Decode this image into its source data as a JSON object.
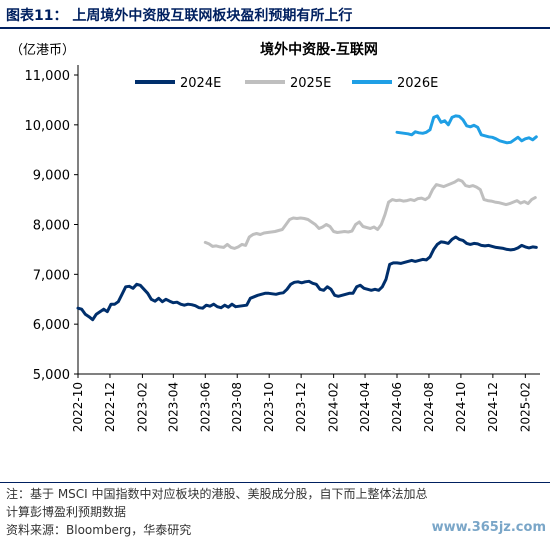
{
  "header": {
    "title": "图表11：  上周境外中资股互联网板块盈利预期有所上行"
  },
  "chart_data": {
    "type": "line",
    "title": "境外中资股-互联网",
    "unit_label": "（亿港币）",
    "ylim": [
      5000,
      11000
    ],
    "yticks": [
      5000,
      6000,
      7000,
      8000,
      9000,
      10000,
      11000
    ],
    "ytick_labels": [
      "5,000",
      "6,000",
      "7,000",
      "8,000",
      "9,000",
      "10,000",
      "11,000"
    ],
    "x_ticks": [
      "2022-10",
      "2022-12",
      "2023-02",
      "2023-04",
      "2023-06",
      "2023-08",
      "2023-10",
      "2023-12",
      "2024-02",
      "2024-04",
      "2024-06",
      "2024-08",
      "2024-10",
      "2024-12",
      "2025-02"
    ],
    "grid": false,
    "legend_position": "top",
    "series": [
      {
        "name": "2024E",
        "color": "#002F6C",
        "points": [
          [
            "2022-10-01",
            6320
          ],
          [
            "2022-10-08",
            6300
          ],
          [
            "2022-10-15",
            6200
          ],
          [
            "2022-10-22",
            6150
          ],
          [
            "2022-10-29",
            6090
          ],
          [
            "2022-11-05",
            6200
          ],
          [
            "2022-11-12",
            6250
          ],
          [
            "2022-11-19",
            6300
          ],
          [
            "2022-11-26",
            6250
          ],
          [
            "2022-12-03",
            6400
          ],
          [
            "2022-12-10",
            6400
          ],
          [
            "2022-12-17",
            6450
          ],
          [
            "2022-12-24",
            6600
          ],
          [
            "2022-12-31",
            6750
          ],
          [
            "2023-01-07",
            6760
          ],
          [
            "2023-01-14",
            6720
          ],
          [
            "2023-01-21",
            6800
          ],
          [
            "2023-01-28",
            6780
          ],
          [
            "2023-02-04",
            6700
          ],
          [
            "2023-02-11",
            6620
          ],
          [
            "2023-02-18",
            6500
          ],
          [
            "2023-02-25",
            6460
          ],
          [
            "2023-03-04",
            6520
          ],
          [
            "2023-03-11",
            6450
          ],
          [
            "2023-03-18",
            6500
          ],
          [
            "2023-03-25",
            6460
          ],
          [
            "2023-04-01",
            6430
          ],
          [
            "2023-04-08",
            6440
          ],
          [
            "2023-04-15",
            6400
          ],
          [
            "2023-04-22",
            6380
          ],
          [
            "2023-04-29",
            6400
          ],
          [
            "2023-05-06",
            6390
          ],
          [
            "2023-05-13",
            6370
          ],
          [
            "2023-05-20",
            6330
          ],
          [
            "2023-05-27",
            6320
          ],
          [
            "2023-06-03",
            6380
          ],
          [
            "2023-06-10",
            6360
          ],
          [
            "2023-06-17",
            6400
          ],
          [
            "2023-06-24",
            6350
          ],
          [
            "2023-07-01",
            6330
          ],
          [
            "2023-07-08",
            6380
          ],
          [
            "2023-07-15",
            6340
          ],
          [
            "2023-07-22",
            6400
          ],
          [
            "2023-07-29",
            6350
          ],
          [
            "2023-08-05",
            6360
          ],
          [
            "2023-08-12",
            6370
          ],
          [
            "2023-08-19",
            6380
          ],
          [
            "2023-08-26",
            6520
          ],
          [
            "2023-09-02",
            6550
          ],
          [
            "2023-09-09",
            6580
          ],
          [
            "2023-09-16",
            6600
          ],
          [
            "2023-09-23",
            6620
          ],
          [
            "2023-09-30",
            6620
          ],
          [
            "2023-10-07",
            6610
          ],
          [
            "2023-10-14",
            6600
          ],
          [
            "2023-10-21",
            6620
          ],
          [
            "2023-10-28",
            6630
          ],
          [
            "2023-11-04",
            6700
          ],
          [
            "2023-11-11",
            6800
          ],
          [
            "2023-11-18",
            6840
          ],
          [
            "2023-11-25",
            6850
          ],
          [
            "2023-12-02",
            6830
          ],
          [
            "2023-12-09",
            6850
          ],
          [
            "2023-12-16",
            6860
          ],
          [
            "2023-12-23",
            6820
          ],
          [
            "2023-12-30",
            6800
          ],
          [
            "2024-01-06",
            6700
          ],
          [
            "2024-01-13",
            6680
          ],
          [
            "2024-01-20",
            6750
          ],
          [
            "2024-01-27",
            6700
          ],
          [
            "2024-02-03",
            6580
          ],
          [
            "2024-02-10",
            6560
          ],
          [
            "2024-02-17",
            6580
          ],
          [
            "2024-02-24",
            6600
          ],
          [
            "2024-03-02",
            6620
          ],
          [
            "2024-03-09",
            6620
          ],
          [
            "2024-03-16",
            6750
          ],
          [
            "2024-03-23",
            6780
          ],
          [
            "2024-03-30",
            6720
          ],
          [
            "2024-04-06",
            6700
          ],
          [
            "2024-04-13",
            6680
          ],
          [
            "2024-04-20",
            6700
          ],
          [
            "2024-04-27",
            6680
          ],
          [
            "2024-05-04",
            6750
          ],
          [
            "2024-05-11",
            6900
          ],
          [
            "2024-05-18",
            7200
          ],
          [
            "2024-05-25",
            7230
          ],
          [
            "2024-06-01",
            7230
          ],
          [
            "2024-06-08",
            7220
          ],
          [
            "2024-06-15",
            7240
          ],
          [
            "2024-06-22",
            7260
          ],
          [
            "2024-06-29",
            7280
          ],
          [
            "2024-07-06",
            7260
          ],
          [
            "2024-07-13",
            7280
          ],
          [
            "2024-07-20",
            7300
          ],
          [
            "2024-07-27",
            7290
          ],
          [
            "2024-08-03",
            7350
          ],
          [
            "2024-08-10",
            7500
          ],
          [
            "2024-08-17",
            7600
          ],
          [
            "2024-08-24",
            7650
          ],
          [
            "2024-08-31",
            7640
          ],
          [
            "2024-09-07",
            7620
          ],
          [
            "2024-09-14",
            7700
          ],
          [
            "2024-09-21",
            7750
          ],
          [
            "2024-09-28",
            7700
          ],
          [
            "2024-10-05",
            7680
          ],
          [
            "2024-10-12",
            7620
          ],
          [
            "2024-10-19",
            7600
          ],
          [
            "2024-10-26",
            7620
          ],
          [
            "2024-11-02",
            7610
          ],
          [
            "2024-11-09",
            7580
          ],
          [
            "2024-11-16",
            7570
          ],
          [
            "2024-11-23",
            7580
          ],
          [
            "2024-11-30",
            7560
          ],
          [
            "2024-12-07",
            7540
          ],
          [
            "2024-12-14",
            7530
          ],
          [
            "2024-12-21",
            7520
          ],
          [
            "2024-12-28",
            7500
          ],
          [
            "2025-01-04",
            7490
          ],
          [
            "2025-01-11",
            7500
          ],
          [
            "2025-01-18",
            7530
          ],
          [
            "2025-01-25",
            7580
          ],
          [
            "2025-02-01",
            7550
          ],
          [
            "2025-02-08",
            7530
          ],
          [
            "2025-02-15",
            7550
          ],
          [
            "2025-02-22",
            7540
          ]
        ]
      },
      {
        "name": "2025E",
        "color": "#BFBFBF",
        "points": [
          [
            "2023-06-01",
            7640
          ],
          [
            "2023-06-08",
            7610
          ],
          [
            "2023-06-15",
            7560
          ],
          [
            "2023-06-22",
            7570
          ],
          [
            "2023-06-29",
            7550
          ],
          [
            "2023-07-06",
            7540
          ],
          [
            "2023-07-13",
            7600
          ],
          [
            "2023-07-20",
            7540
          ],
          [
            "2023-07-27",
            7520
          ],
          [
            "2023-08-03",
            7550
          ],
          [
            "2023-08-10",
            7600
          ],
          [
            "2023-08-17",
            7580
          ],
          [
            "2023-08-24",
            7750
          ],
          [
            "2023-08-31",
            7800
          ],
          [
            "2023-09-07",
            7820
          ],
          [
            "2023-09-14",
            7800
          ],
          [
            "2023-09-21",
            7830
          ],
          [
            "2023-09-28",
            7840
          ],
          [
            "2023-10-05",
            7850
          ],
          [
            "2023-10-12",
            7860
          ],
          [
            "2023-10-19",
            7880
          ],
          [
            "2023-10-26",
            7900
          ],
          [
            "2023-11-02",
            8000
          ],
          [
            "2023-11-09",
            8100
          ],
          [
            "2023-11-16",
            8130
          ],
          [
            "2023-11-23",
            8120
          ],
          [
            "2023-11-30",
            8130
          ],
          [
            "2023-12-07",
            8120
          ],
          [
            "2023-12-14",
            8100
          ],
          [
            "2023-12-21",
            8050
          ],
          [
            "2023-12-28",
            8000
          ],
          [
            "2024-01-04",
            7920
          ],
          [
            "2024-01-11",
            7950
          ],
          [
            "2024-01-18",
            8000
          ],
          [
            "2024-01-25",
            7960
          ],
          [
            "2024-02-01",
            7860
          ],
          [
            "2024-02-08",
            7840
          ],
          [
            "2024-02-15",
            7850
          ],
          [
            "2024-02-22",
            7860
          ],
          [
            "2024-02-29",
            7850
          ],
          [
            "2024-03-07",
            7870
          ],
          [
            "2024-03-14",
            8000
          ],
          [
            "2024-03-21",
            8050
          ],
          [
            "2024-03-28",
            7960
          ],
          [
            "2024-04-04",
            7940
          ],
          [
            "2024-04-11",
            7920
          ],
          [
            "2024-04-18",
            7950
          ],
          [
            "2024-04-25",
            7900
          ],
          [
            "2024-05-02",
            8000
          ],
          [
            "2024-05-09",
            8200
          ],
          [
            "2024-05-16",
            8450
          ],
          [
            "2024-05-23",
            8500
          ],
          [
            "2024-05-30",
            8480
          ],
          [
            "2024-06-06",
            8490
          ],
          [
            "2024-06-13",
            8470
          ],
          [
            "2024-06-20",
            8480
          ],
          [
            "2024-06-27",
            8500
          ],
          [
            "2024-07-04",
            8480
          ],
          [
            "2024-07-11",
            8520
          ],
          [
            "2024-07-18",
            8530
          ],
          [
            "2024-07-25",
            8500
          ],
          [
            "2024-08-01",
            8550
          ],
          [
            "2024-08-08",
            8700
          ],
          [
            "2024-08-15",
            8800
          ],
          [
            "2024-08-22",
            8780
          ],
          [
            "2024-08-29",
            8760
          ],
          [
            "2024-09-05",
            8790
          ],
          [
            "2024-09-12",
            8820
          ],
          [
            "2024-09-19",
            8850
          ],
          [
            "2024-09-26",
            8900
          ],
          [
            "2024-10-03",
            8870
          ],
          [
            "2024-10-10",
            8780
          ],
          [
            "2024-10-17",
            8760
          ],
          [
            "2024-10-24",
            8780
          ],
          [
            "2024-10-31",
            8750
          ],
          [
            "2024-11-07",
            8700
          ],
          [
            "2024-11-14",
            8500
          ],
          [
            "2024-11-21",
            8480
          ],
          [
            "2024-11-28",
            8470
          ],
          [
            "2024-12-05",
            8450
          ],
          [
            "2024-12-12",
            8440
          ],
          [
            "2024-12-19",
            8420
          ],
          [
            "2024-12-26",
            8400
          ],
          [
            "2025-01-02",
            8420
          ],
          [
            "2025-01-09",
            8450
          ],
          [
            "2025-01-16",
            8480
          ],
          [
            "2025-01-23",
            8430
          ],
          [
            "2025-01-30",
            8460
          ],
          [
            "2025-02-06",
            8420
          ],
          [
            "2025-02-13",
            8500
          ],
          [
            "2025-02-20",
            8540
          ]
        ]
      },
      {
        "name": "2026E",
        "color": "#1F9FE5",
        "points": [
          [
            "2024-06-01",
            9850
          ],
          [
            "2024-06-08",
            9840
          ],
          [
            "2024-06-15",
            9830
          ],
          [
            "2024-06-22",
            9820
          ],
          [
            "2024-06-29",
            9800
          ],
          [
            "2024-07-06",
            9860
          ],
          [
            "2024-07-13",
            9840
          ],
          [
            "2024-07-20",
            9830
          ],
          [
            "2024-07-27",
            9850
          ],
          [
            "2024-08-03",
            9900
          ],
          [
            "2024-08-10",
            10150
          ],
          [
            "2024-08-17",
            10180
          ],
          [
            "2024-08-24",
            10050
          ],
          [
            "2024-08-31",
            10080
          ],
          [
            "2024-09-07",
            10000
          ],
          [
            "2024-09-14",
            10150
          ],
          [
            "2024-09-21",
            10180
          ],
          [
            "2024-09-28",
            10170
          ],
          [
            "2024-10-05",
            10100
          ],
          [
            "2024-10-12",
            9980
          ],
          [
            "2024-10-19",
            9960
          ],
          [
            "2024-10-26",
            9990
          ],
          [
            "2024-11-02",
            9950
          ],
          [
            "2024-11-09",
            9800
          ],
          [
            "2024-11-16",
            9780
          ],
          [
            "2024-11-23",
            9760
          ],
          [
            "2024-11-30",
            9750
          ],
          [
            "2024-12-07",
            9720
          ],
          [
            "2024-12-14",
            9680
          ],
          [
            "2024-12-21",
            9660
          ],
          [
            "2024-12-28",
            9640
          ],
          [
            "2025-01-04",
            9650
          ],
          [
            "2025-01-11",
            9700
          ],
          [
            "2025-01-18",
            9750
          ],
          [
            "2025-01-25",
            9680
          ],
          [
            "2025-02-01",
            9720
          ],
          [
            "2025-02-08",
            9740
          ],
          [
            "2025-02-15",
            9700
          ],
          [
            "2025-02-22",
            9760
          ]
        ]
      }
    ]
  },
  "footer": {
    "note_line1": "注：基于 MSCI 中国指数中对应板块的港股、美股成分股，自下而上整体法加总",
    "note_line2": "计算彭博盈利预期数据",
    "source": "资料来源：Bloomberg，华泰研究",
    "watermark": "www.365jz.com"
  }
}
